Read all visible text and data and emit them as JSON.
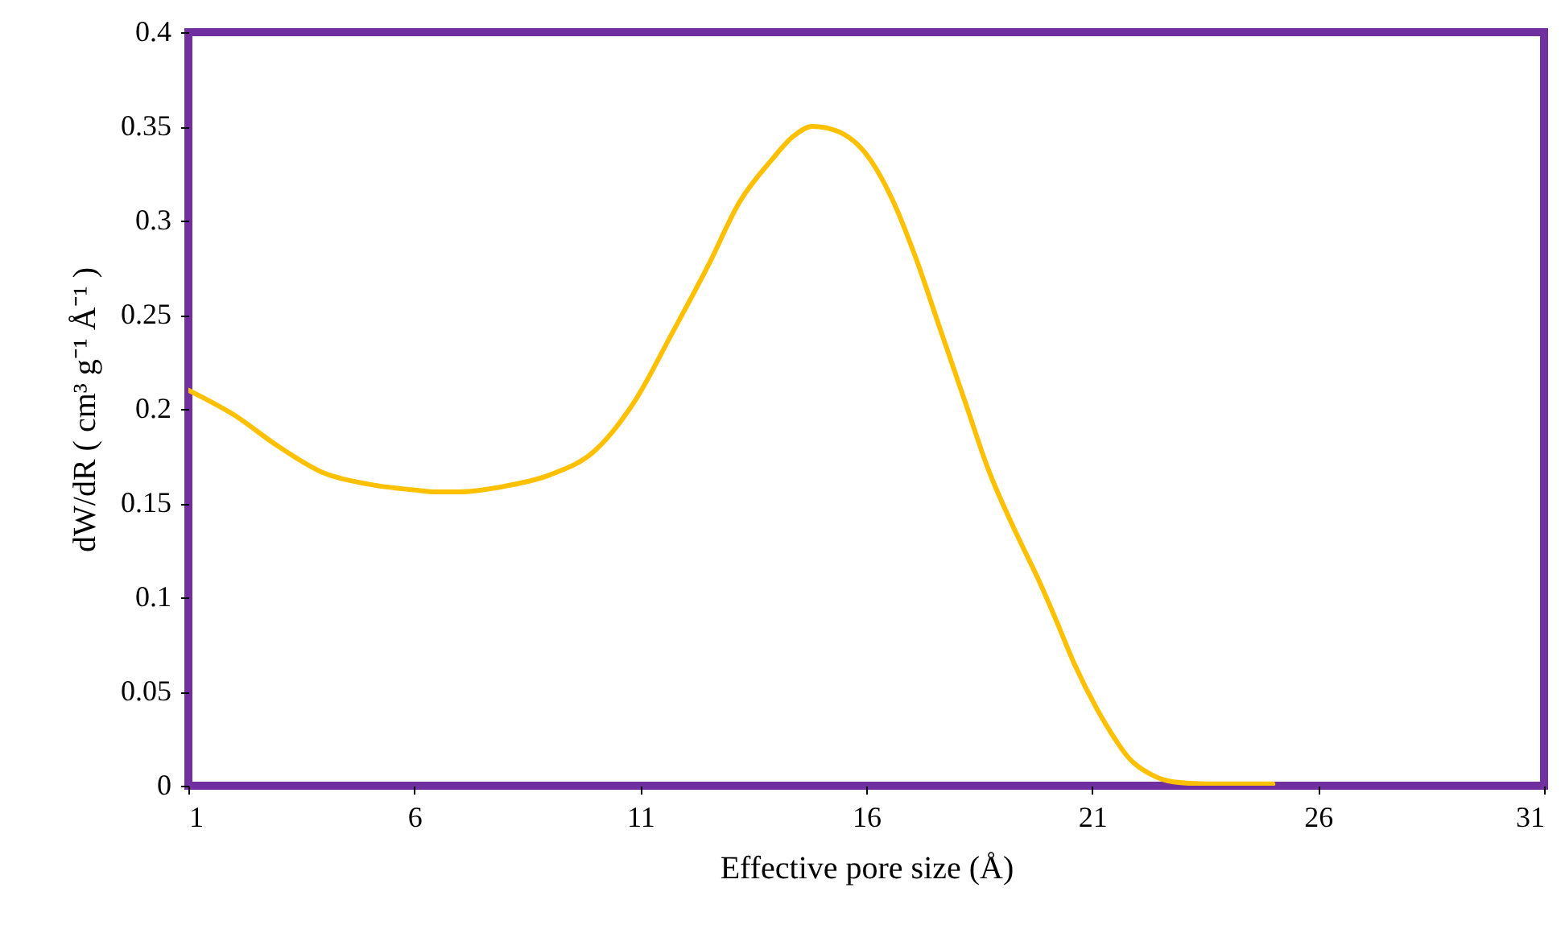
{
  "chart_data": {
    "type": "line",
    "xlabel": "Effective pore size (Å)",
    "ylabel": "dW/dR ( cm³ g⁻¹ Å⁻¹ )",
    "x": [
      1,
      2,
      3,
      4,
      5,
      6,
      6.5,
      7,
      8,
      9,
      10,
      10.9,
      11.7,
      12.5,
      13.2,
      13.9,
      14.4,
      14.8,
      15.3,
      16.1,
      16.6,
      17.1,
      17.6,
      18.2,
      18.7,
      19.3,
      19.8,
      20.2,
      20.6,
      21.1,
      21.5,
      21.8,
      22.3,
      22.8,
      23.5,
      24.2,
      25
    ],
    "series": [
      {
        "color": "#ffc000",
        "values": [
          0.21,
          0.197,
          0.18,
          0.166,
          0.16,
          0.157,
          0.156,
          0.156,
          0.159,
          0.165,
          0.178,
          0.205,
          0.24,
          0.276,
          0.31,
          0.332,
          0.345,
          0.35,
          0.348,
          0.332,
          0.31,
          0.28,
          0.245,
          0.203,
          0.168,
          0.135,
          0.11,
          0.088,
          0.065,
          0.041,
          0.025,
          0.015,
          0.006,
          0.002,
          0.001,
          0.001,
          0.001
        ]
      }
    ],
    "xlim": [
      1,
      31
    ],
    "xticks": [
      1,
      6,
      11,
      16,
      21,
      26,
      31
    ],
    "ylim": [
      0,
      0.4
    ],
    "yticks": [
      0,
      0.05,
      0.1,
      0.15,
      0.2,
      0.25,
      0.3,
      0.35,
      0.4
    ],
    "grid": false,
    "legend": false,
    "marker": "none",
    "line_style": "solid"
  }
}
